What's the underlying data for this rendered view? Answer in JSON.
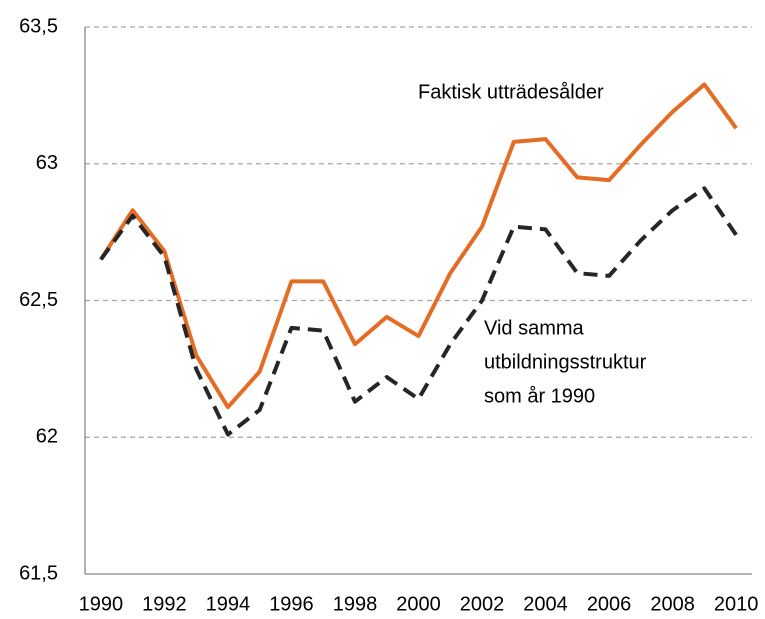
{
  "chart_data": {
    "type": "line",
    "x": [
      1990,
      1991,
      1992,
      1993,
      1994,
      1995,
      1996,
      1997,
      1998,
      1999,
      2000,
      2001,
      2002,
      2003,
      2004,
      2005,
      2006,
      2007,
      2008,
      2009,
      2010
    ],
    "series": [
      {
        "name": "Faktisk utträdesålder",
        "color": "#e46c24",
        "dash": false,
        "values": [
          62.65,
          62.83,
          62.68,
          62.3,
          62.11,
          62.24,
          62.57,
          62.57,
          62.34,
          62.44,
          62.37,
          62.6,
          62.77,
          63.08,
          63.09,
          62.95,
          62.94,
          63.07,
          63.19,
          63.29,
          63.13
        ]
      },
      {
        "name": [
          "Vid samma",
          "utbildningsstruktur",
          "som år 1990"
        ],
        "color": "#262626",
        "dash": true,
        "values": [
          62.65,
          62.81,
          62.66,
          62.25,
          62.01,
          62.1,
          62.4,
          62.39,
          62.13,
          62.22,
          62.14,
          62.34,
          62.5,
          62.77,
          62.76,
          62.6,
          62.59,
          62.72,
          62.83,
          62.91,
          62.74
        ]
      }
    ],
    "xlim": [
      1989.5,
      2010.5
    ],
    "xticks": [
      1990,
      1992,
      1994,
      1996,
      1998,
      2000,
      2002,
      2004,
      2006,
      2008,
      2010
    ],
    "ylim": [
      61.5,
      63.5
    ],
    "yticks": [
      {
        "value": 61.5,
        "label": "61,5"
      },
      62,
      {
        "value": 62.5,
        "label": "62,5"
      },
      63,
      {
        "value": 63.5,
        "label": "63,5"
      }
    ],
    "grid": true
  }
}
